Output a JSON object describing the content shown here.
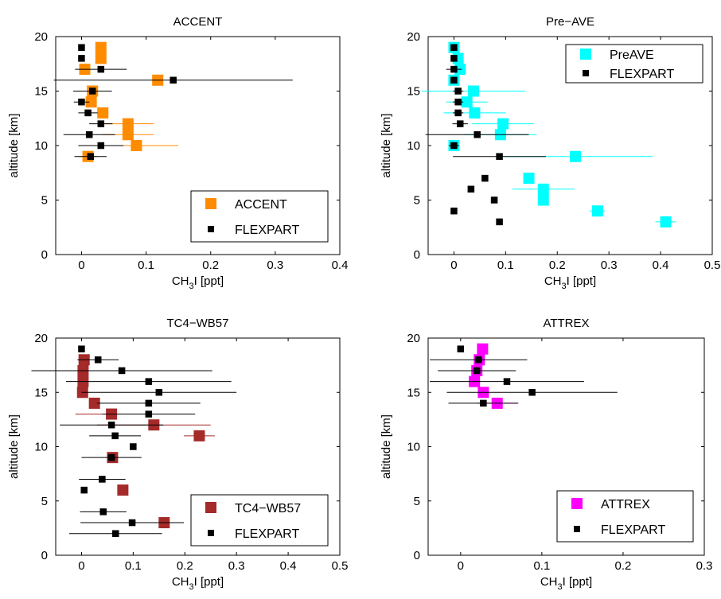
{
  "chart_data": [
    {
      "type": "scatter",
      "title": "ACCENT",
      "xlabel": "CH3I [ppt]",
      "ylabel": "altitude [km]",
      "xlim": [
        -0.04,
        0.4
      ],
      "ylim": [
        0,
        20
      ],
      "xticks": [
        0,
        0.1,
        0.2,
        0.3,
        0.4
      ],
      "xtick_labels": [
        "0",
        "0.1",
        "0.2",
        "0.3",
        "0.4"
      ],
      "yticks": [
        0,
        5,
        10,
        15,
        20
      ],
      "ytick_labels": [
        "0",
        "5",
        "10",
        "15",
        "20"
      ],
      "legend_position": "bottom-right",
      "series": [
        {
          "name": "ACCENT",
          "color": "#ff8c00",
          "marker": "square-large",
          "points": [
            {
              "x": 0.03,
              "y": 19,
              "err": 0
            },
            {
              "x": 0.03,
              "y": 18,
              "err": 0
            },
            {
              "x": 0.005,
              "y": 17,
              "err": 0
            },
            {
              "x": 0.118,
              "y": 16,
              "err": 0
            },
            {
              "x": 0.017,
              "y": 15,
              "err": 0
            },
            {
              "x": 0.015,
              "y": 14,
              "err": 0
            },
            {
              "x": 0.033,
              "y": 13,
              "err": 0
            },
            {
              "x": 0.072,
              "y": 12,
              "err": 0.04
            },
            {
              "x": 0.072,
              "y": 11,
              "err": 0.04
            },
            {
              "x": 0.085,
              "y": 10,
              "err": 0.065
            },
            {
              "x": 0.01,
              "y": 9,
              "err": 0.015
            }
          ]
        },
        {
          "name": "FLEXPART",
          "color": "#000000",
          "marker": "square-small",
          "points": [
            {
              "x": 0.0,
              "y": 19,
              "err": 0
            },
            {
              "x": 0.0,
              "y": 18,
              "err": 0
            },
            {
              "x": 0.03,
              "y": 17,
              "err": 0.04
            },
            {
              "x": 0.142,
              "y": 16,
              "err": 0.185
            },
            {
              "x": 0.017,
              "y": 15,
              "err": 0.03
            },
            {
              "x": 0.0,
              "y": 14,
              "err": 0.012
            },
            {
              "x": 0.01,
              "y": 13,
              "err": 0.015
            },
            {
              "x": 0.03,
              "y": 12,
              "err": 0.018
            },
            {
              "x": 0.012,
              "y": 11,
              "err": 0.04
            },
            {
              "x": 0.03,
              "y": 10,
              "err": 0.035
            },
            {
              "x": 0.014,
              "y": 9,
              "err": 0.025
            }
          ]
        }
      ]
    },
    {
      "type": "scatter",
      "title": "Pre−AVE",
      "xlabel": "CH3I [ppt]",
      "ylabel": "altitude [km]",
      "xlim": [
        -0.05,
        0.5
      ],
      "ylim": [
        0,
        20
      ],
      "xticks": [
        0,
        0.1,
        0.2,
        0.3,
        0.4,
        0.5
      ],
      "xtick_labels": [
        "0",
        "0.1",
        "0.2",
        "0.3",
        "0.4",
        "0.5"
      ],
      "yticks": [
        0,
        5,
        10,
        15,
        20
      ],
      "ytick_labels": [
        "0",
        "5",
        "10",
        "15",
        "20"
      ],
      "legend_position": "top-right",
      "series": [
        {
          "name": "PreAVE",
          "color": "#00ffff",
          "marker": "square-large",
          "points": [
            {
              "x": 0.0,
              "y": 19,
              "err": 0
            },
            {
              "x": 0.008,
              "y": 18,
              "err": 0
            },
            {
              "x": 0.012,
              "y": 17,
              "err": 0
            },
            {
              "x": 0.0,
              "y": 16,
              "err": 0
            },
            {
              "x": 0.038,
              "y": 15,
              "err": 0.1
            },
            {
              "x": 0.025,
              "y": 14,
              "err": 0.04
            },
            {
              "x": 0.04,
              "y": 13,
              "err": 0.06
            },
            {
              "x": 0.095,
              "y": 12,
              "err": 0.06
            },
            {
              "x": 0.09,
              "y": 11,
              "err": 0.07
            },
            {
              "x": 0.0,
              "y": 10,
              "err": 0.01
            },
            {
              "x": 0.235,
              "y": 9,
              "err": 0.15
            },
            {
              "x": 0.145,
              "y": 7,
              "err": 0
            },
            {
              "x": 0.173,
              "y": 6,
              "err": 0.06
            },
            {
              "x": 0.173,
              "y": 5,
              "err": 0
            },
            {
              "x": 0.278,
              "y": 4,
              "err": 0.015
            },
            {
              "x": 0.41,
              "y": 3,
              "err": 0.02
            }
          ]
        },
        {
          "name": "FLEXPART",
          "color": "#000000",
          "marker": "square-small",
          "points": [
            {
              "x": 0.0,
              "y": 19,
              "err": 0
            },
            {
              "x": 0.0,
              "y": 18,
              "err": 0
            },
            {
              "x": 0.0,
              "y": 17,
              "err": 0.015
            },
            {
              "x": 0.0,
              "y": 16,
              "err": 0
            },
            {
              "x": 0.008,
              "y": 15,
              "err": 0.01
            },
            {
              "x": 0.008,
              "y": 14,
              "err": 0.01
            },
            {
              "x": 0.008,
              "y": 13,
              "err": 0.01
            },
            {
              "x": 0.012,
              "y": 12,
              "err": 0.015
            },
            {
              "x": 0.045,
              "y": 11,
              "err": 0.1
            },
            {
              "x": 0.0,
              "y": 10,
              "err": 0.01
            },
            {
              "x": 0.088,
              "y": 9,
              "err": 0.09
            },
            {
              "x": 0.06,
              "y": 7,
              "err": 0
            },
            {
              "x": 0.033,
              "y": 6,
              "err": 0
            },
            {
              "x": 0.078,
              "y": 5,
              "err": 0
            },
            {
              "x": 0.0,
              "y": 4,
              "err": 0
            },
            {
              "x": 0.088,
              "y": 3,
              "err": 0
            }
          ]
        }
      ]
    },
    {
      "type": "scatter",
      "title": "TC4−WB57",
      "xlabel": "CH3I [ppt]",
      "ylabel": "altitude [km]",
      "xlim": [
        -0.05,
        0.5
      ],
      "ylim": [
        0,
        20
      ],
      "xticks": [
        0,
        0.1,
        0.2,
        0.3,
        0.4,
        0.5
      ],
      "xtick_labels": [
        "0",
        "0.1",
        "0.2",
        "0.3",
        "0.4",
        "0.5"
      ],
      "yticks": [
        0,
        5,
        10,
        15,
        20
      ],
      "ytick_labels": [
        "0",
        "5",
        "10",
        "15",
        "20"
      ],
      "legend_position": "bottom-right",
      "series": [
        {
          "name": "TC4−WB57",
          "color": "#a52a2a",
          "marker": "square-large",
          "points": [
            {
              "x": 0.005,
              "y": 18,
              "err": 0
            },
            {
              "x": 0.003,
              "y": 17,
              "err": 0
            },
            {
              "x": 0.003,
              "y": 16,
              "err": 0
            },
            {
              "x": 0.002,
              "y": 15,
              "err": 0
            },
            {
              "x": 0.025,
              "y": 14,
              "err": 0
            },
            {
              "x": 0.058,
              "y": 13,
              "err": 0.07
            },
            {
              "x": 0.14,
              "y": 12,
              "err": 0.11
            },
            {
              "x": 0.228,
              "y": 11,
              "err": 0.03
            },
            {
              "x": 0.06,
              "y": 9,
              "err": 0
            },
            {
              "x": 0.08,
              "y": 6,
              "err": 0
            },
            {
              "x": 0.23,
              "y": 4,
              "err": 0
            },
            {
              "x": 0.16,
              "y": 3,
              "err": 0
            }
          ]
        },
        {
          "name": "FLEXPART",
          "color": "#000000",
          "marker": "square-small",
          "points": [
            {
              "x": 0.0,
              "y": 19,
              "err": 0
            },
            {
              "x": 0.032,
              "y": 18,
              "err": 0.04
            },
            {
              "x": 0.078,
              "y": 17,
              "err": 0.175
            },
            {
              "x": 0.13,
              "y": 16,
              "err": 0.16
            },
            {
              "x": 0.15,
              "y": 15,
              "err": 0.15
            },
            {
              "x": 0.13,
              "y": 14,
              "err": 0.1
            },
            {
              "x": 0.13,
              "y": 13,
              "err": 0.09
            },
            {
              "x": 0.058,
              "y": 12,
              "err": 0.1
            },
            {
              "x": 0.065,
              "y": 11,
              "err": 0.05
            },
            {
              "x": 0.1,
              "y": 10,
              "err": 0
            },
            {
              "x": 0.058,
              "y": 9,
              "err": 0.058
            },
            {
              "x": 0.04,
              "y": 7,
              "err": 0.045
            },
            {
              "x": 0.005,
              "y": 6,
              "err": 0
            },
            {
              "x": 0.042,
              "y": 4,
              "err": 0.045
            },
            {
              "x": 0.098,
              "y": 3,
              "err": 0.1
            },
            {
              "x": 0.066,
              "y": 2,
              "err": 0.09
            }
          ]
        }
      ]
    },
    {
      "type": "scatter",
      "title": "ATTREX",
      "xlabel": "CH3I [ppt]",
      "ylabel": "altitude [km]",
      "xlim": [
        -0.04,
        0.3
      ],
      "ylim": [
        0,
        20
      ],
      "xticks": [
        0,
        0.1,
        0.2,
        0.3
      ],
      "xtick_labels": [
        "0",
        "0.1",
        "0.2",
        "0.3"
      ],
      "yticks": [
        0,
        5,
        10,
        15,
        20
      ],
      "ytick_labels": [
        "0",
        "5",
        "10",
        "15",
        "20"
      ],
      "legend_position": "bottom-right",
      "series": [
        {
          "name": "ATTREX",
          "color": "#ff00ff",
          "marker": "square-large",
          "points": [
            {
              "x": 0.027,
              "y": 19,
              "err": 0
            },
            {
              "x": 0.023,
              "y": 18,
              "err": 0
            },
            {
              "x": 0.02,
              "y": 17,
              "err": 0
            },
            {
              "x": 0.017,
              "y": 16,
              "err": 0
            },
            {
              "x": 0.028,
              "y": 15,
              "err": 0
            },
            {
              "x": 0.045,
              "y": 14,
              "err": 0.025
            }
          ]
        },
        {
          "name": "FLEXPART",
          "color": "#000000",
          "marker": "square-small",
          "points": [
            {
              "x": 0.0,
              "y": 19,
              "err": 0
            },
            {
              "x": 0.022,
              "y": 18,
              "err": 0.06
            },
            {
              "x": 0.02,
              "y": 17,
              "err": 0.048
            },
            {
              "x": 0.057,
              "y": 16,
              "err": 0.095
            },
            {
              "x": 0.088,
              "y": 15,
              "err": 0.105
            },
            {
              "x": 0.028,
              "y": 14,
              "err": 0.043
            }
          ]
        }
      ]
    }
  ]
}
